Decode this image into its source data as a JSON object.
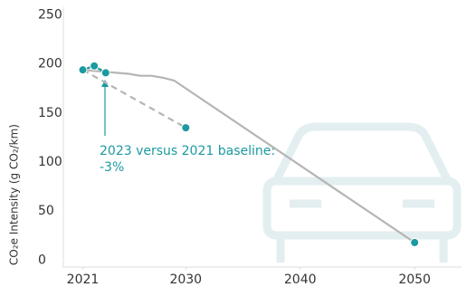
{
  "chart_data": {
    "type": "line",
    "y_label": "CO₂e Intensity (g CO₂/km)",
    "xlim": [
      2019.3,
      2054.1
    ],
    "xticks": [
      2021,
      2030,
      2040,
      2050
    ],
    "ylim": [
      -7,
      256
    ],
    "yticks": [
      0,
      50,
      100,
      150,
      200,
      250
    ],
    "series": [
      {
        "color": "#b5b5b5",
        "x": [
          2021,
          2022,
          2023,
          2025,
          2026,
          2027,
          2028,
          2029,
          2050
        ],
        "values": [
          194,
          193,
          192,
          190,
          188,
          188,
          186,
          183,
          18
        ],
        "markers": false,
        "dashed": false
      },
      {
        "color": "#b5b5b5",
        "x": [
          2021,
          2030
        ],
        "values": [
          194,
          135
        ],
        "markers": false,
        "dashed": true
      },
      {
        "color": "#1b9aa0",
        "x": [
          2021,
          2022,
          2023
        ],
        "values": [
          194,
          198,
          191
        ],
        "markers": true,
        "dashed": false
      },
      {
        "color": "#1b9aa0",
        "x": [
          2030
        ],
        "values": [
          135
        ],
        "markers": true,
        "dashed": false
      },
      {
        "color": "#1b9aa0",
        "x": [
          2050
        ],
        "values": [
          18
        ],
        "markers": true,
        "dashed": false
      }
    ],
    "annotation": [
      "2023 versus 2021 baseline:",
      "-3%"
    ]
  }
}
